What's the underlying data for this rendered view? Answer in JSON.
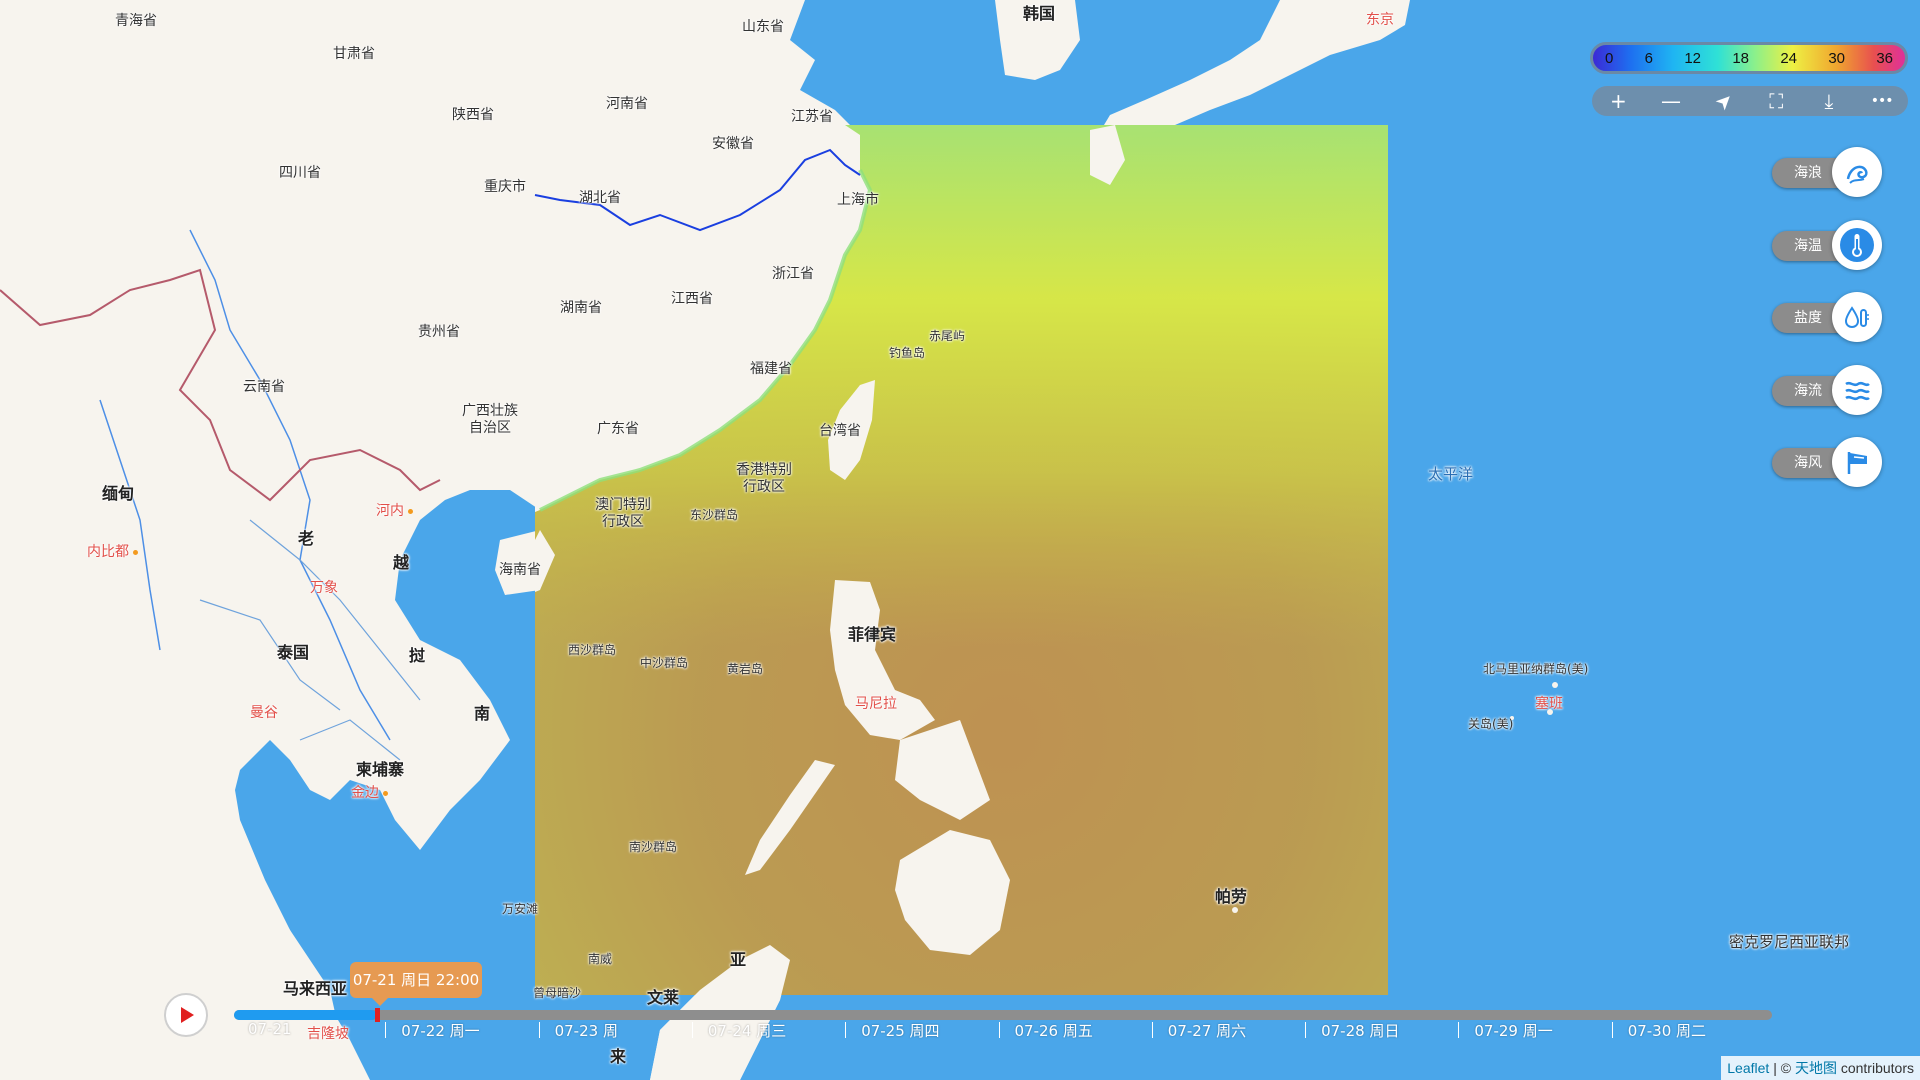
{
  "labels": {
    "qinghai": "青海省",
    "gansu": "甘肃省",
    "shandong": "山东省",
    "korea": "韩国",
    "tokyo": "东京",
    "shaanxi": "陕西省",
    "henan": "河南省",
    "jiangsu": "江苏省",
    "anhui": "安徽省",
    "sichuan": "四川省",
    "chongqing": "重庆市",
    "hubei": "湖北省",
    "shanghai": "上海市",
    "zhejiang": "浙江省",
    "hunan": "湖南省",
    "jiangxi": "江西省",
    "guizhou": "贵州省",
    "yunnan": "云南省",
    "fujian": "福建省",
    "diaoyu": "钓鱼岛",
    "chiwei": "赤尾屿",
    "guangxi": "广西壮族\n自治区",
    "guangdong": "广东省",
    "taiwan": "台湾省",
    "hongkong": "香港特别\n行政区",
    "macau": "澳门特别\n行政区",
    "dongsha": "东沙群岛",
    "hainan": "海南省",
    "myanmar": "缅甸",
    "naypyidaw": "内比都",
    "laos1": "老",
    "laos2": "挝",
    "vietnam1": "越",
    "vietnam2": "南",
    "hanoi": "河内",
    "vientiane": "万象",
    "thailand": "泰国",
    "bangkok": "曼谷",
    "cambodia": "柬埔寨",
    "phnompenh": "金边",
    "xisha": "西沙群岛",
    "zhongsha": "中沙群岛",
    "huangyan": "黄岩岛",
    "philippines": "菲律宾",
    "manila": "马尼拉",
    "nansha": "南沙群岛",
    "wanan": "万安滩",
    "nanwei": "南威",
    "zengmu": "曾母暗沙",
    "brunei": "文莱",
    "ya": "亚",
    "malaysia": "马来西亚",
    "kualalumpur": "吉隆坡",
    "lai": "来",
    "palau": "帕劳",
    "pacific": "太平洋",
    "nmariana": "北马里亚纳群岛(美)",
    "saipan": "塞班",
    "guam": "关岛(美)",
    "micronesia": "密克罗尼西亚联邦"
  },
  "legend": {
    "ticks": [
      "0",
      "6",
      "12",
      "18",
      "24",
      "30",
      "36"
    ]
  },
  "toolbar": {
    "zoom_in": "+",
    "zoom_out": "—",
    "locate": "➤",
    "fullscreen": "⛶",
    "download": "⤓",
    "more": "•••"
  },
  "layers": [
    {
      "label": "海浪",
      "icon": "wave-icon"
    },
    {
      "label": "海温",
      "icon": "thermometer-icon"
    },
    {
      "label": "盐度",
      "icon": "salinity-icon"
    },
    {
      "label": "海流",
      "icon": "current-icon"
    },
    {
      "label": "海风",
      "icon": "wind-flag-icon"
    }
  ],
  "timeline": {
    "current": "07-21 周日 22:00",
    "progress_fraction": 0.093,
    "dates": [
      "07-21",
      "07-22 周一",
      "07-23 周",
      "07-24 周三",
      "07-25 周四",
      "07-26 周五",
      "07-27 周六",
      "07-28 周日",
      "07-29 周一",
      "07-30 周二"
    ]
  },
  "attribution": {
    "leaflet": "Leaflet",
    "sep": "|",
    "copy": "©",
    "tianditu": "天地图",
    "suffix": "contributors"
  },
  "colors": {
    "sea": "#4aa6ea",
    "land": "#f7f4ee",
    "accent": "#1f9bf0",
    "tip": "#e69a52"
  }
}
